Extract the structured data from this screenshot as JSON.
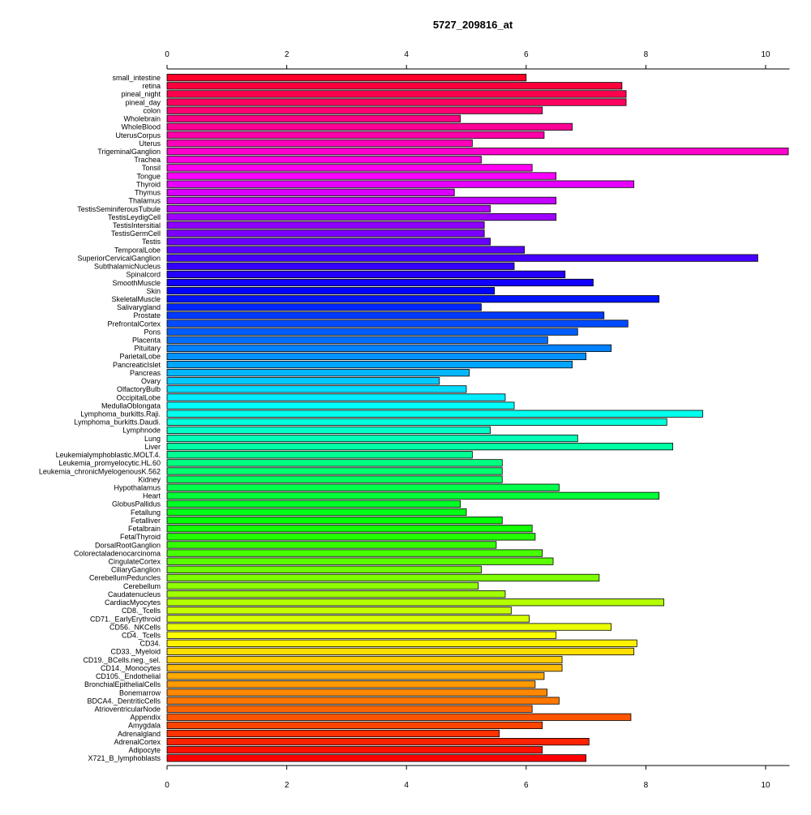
{
  "chart_data": {
    "type": "bar",
    "orientation": "horizontal",
    "title": "5727_209816_at",
    "xlabel": "",
    "ylabel": "",
    "xlim": [
      0,
      10.4
    ],
    "x_ticks": [
      0,
      2,
      4,
      6,
      8,
      10
    ],
    "x_axis_position": "top and bottom",
    "grid": false,
    "legend": "none",
    "color_scheme": "rainbow (red top → magenta → blue → cyan → green → yellow → orange → red bottom)",
    "categories": [
      "small_intestine",
      "retina",
      "pineal_night",
      "pineal_day",
      "colon",
      "Wholebrain",
      "WholeBlood",
      "UterusCorpus",
      "Uterus",
      "TrigeminalGanglion",
      "Trachea",
      "Tonsil",
      "Tongue",
      "Thyroid",
      "Thymus",
      "Thalamus",
      "TestisSeminiferousTubule",
      "TestisLeydigCell",
      "TestisIntersitial",
      "TestisGermCell",
      "Testis",
      "TemporalLobe",
      "SuperiorCervicalGanglion",
      "SubthalamicNucleus",
      "Spinalcord",
      "SmoothMuscle",
      "Skin",
      "SkeletalMuscle",
      "Salivarygland",
      "Prostate",
      "PrefrontalCortex",
      "Pons",
      "Placenta",
      "Pituitary",
      "ParietalLobe",
      "PancreaticIslet",
      "Pancreas",
      "Ovary",
      "OlfactoryBulb",
      "OccipitalLobe",
      "MedullaOblongata",
      "Lymphoma_burkitts.Raji.",
      "Lymphoma_burkitts.Daudi.",
      "Lymphnode",
      "Lung",
      "Liver",
      "Leukemialymphoblastic.MOLT.4.",
      "Leukemia_promyelocytic.HL.60",
      "Leukemia_chronicMyelogenousK.562",
      "Kidney",
      "Hypothalamus",
      "Heart",
      "GlobusPallidus",
      "Fetallung",
      "Fetalliver",
      "Fetalbrain",
      "FetalThyroid",
      "DorsalRootGanglion",
      "Colorectaladenocarcinoma",
      "CingulateCortex",
      "CiliaryGanglion",
      "CerebellumPeduncles",
      "Cerebellum",
      "Caudatenucleus",
      "CardiacMyocytes",
      "CD8._Tcells",
      "CD71._EarlyErythroid",
      "CD56._NKCells",
      "CD4._Tcells",
      "CD34.",
      "CD33._Myeloid",
      "CD19._BCells.neg._sel.",
      "CD14._Monocytes",
      "CD105._Endothelial",
      "BronchialEpithelialCells",
      "Bonemarrow",
      "BDCA4._DentriticCells",
      "AtrioventricularNode",
      "Appendix",
      "Amygdala",
      "Adrenalgland",
      "AdrenalCortex",
      "Adipocyte",
      "X721_B_lymphoblasts"
    ],
    "values": [
      6.0,
      7.6,
      7.67,
      7.67,
      6.27,
      4.9,
      6.77,
      6.3,
      5.1,
      10.38,
      5.25,
      6.1,
      6.5,
      7.8,
      4.8,
      6.5,
      5.4,
      6.5,
      5.3,
      5.3,
      5.4,
      5.97,
      9.87,
      5.8,
      6.65,
      7.12,
      5.47,
      8.22,
      5.25,
      7.3,
      7.7,
      6.86,
      6.36,
      7.42,
      7.0,
      6.77,
      5.05,
      4.55,
      5.0,
      5.65,
      5.8,
      8.95,
      8.35,
      5.4,
      6.86,
      8.45,
      5.1,
      5.6,
      5.6,
      5.6,
      6.55,
      8.22,
      4.9,
      5.0,
      5.6,
      6.1,
      6.15,
      5.5,
      6.27,
      6.45,
      5.25,
      7.22,
      5.2,
      5.65,
      8.3,
      5.75,
      6.05,
      7.42,
      6.5,
      7.85,
      7.8,
      6.6,
      6.6,
      6.3,
      6.15,
      6.35,
      6.55,
      6.1,
      7.75,
      6.27,
      5.55,
      7.05,
      6.27,
      7.0
    ]
  }
}
